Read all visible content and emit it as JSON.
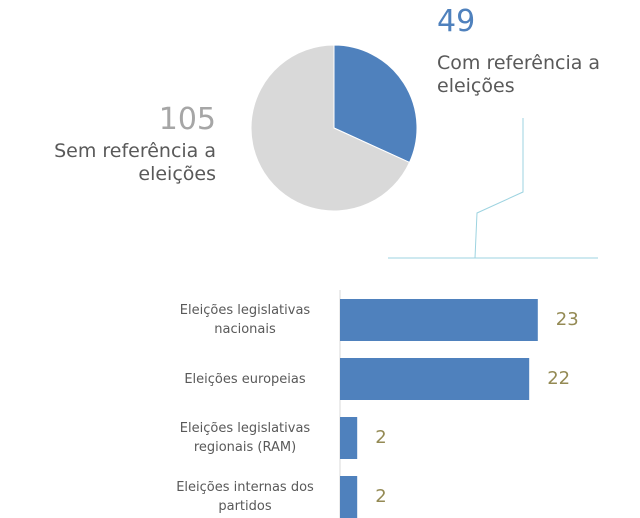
{
  "chart_data": [
    {
      "type": "pie",
      "labels": [
        "Com referência a eleições",
        "Sem referência a eleições"
      ],
      "values": [
        49,
        105
      ],
      "colors": [
        "#4f81bd",
        "#d9d9d9"
      ],
      "label_colors": [
        "#4f81bd",
        "#a6a6a6"
      ]
    },
    {
      "type": "bar",
      "orientation": "horizontal",
      "categories": [
        "Eleições legislativas nacionais",
        "Eleições europeias",
        "Eleições legislativas regionais (RAM)",
        "Eleições internas dos partidos"
      ],
      "values": [
        23,
        22,
        2,
        2
      ],
      "color": "#4f81bd",
      "value_label_color": "#948a54",
      "xlim": [
        0,
        25
      ]
    }
  ]
}
